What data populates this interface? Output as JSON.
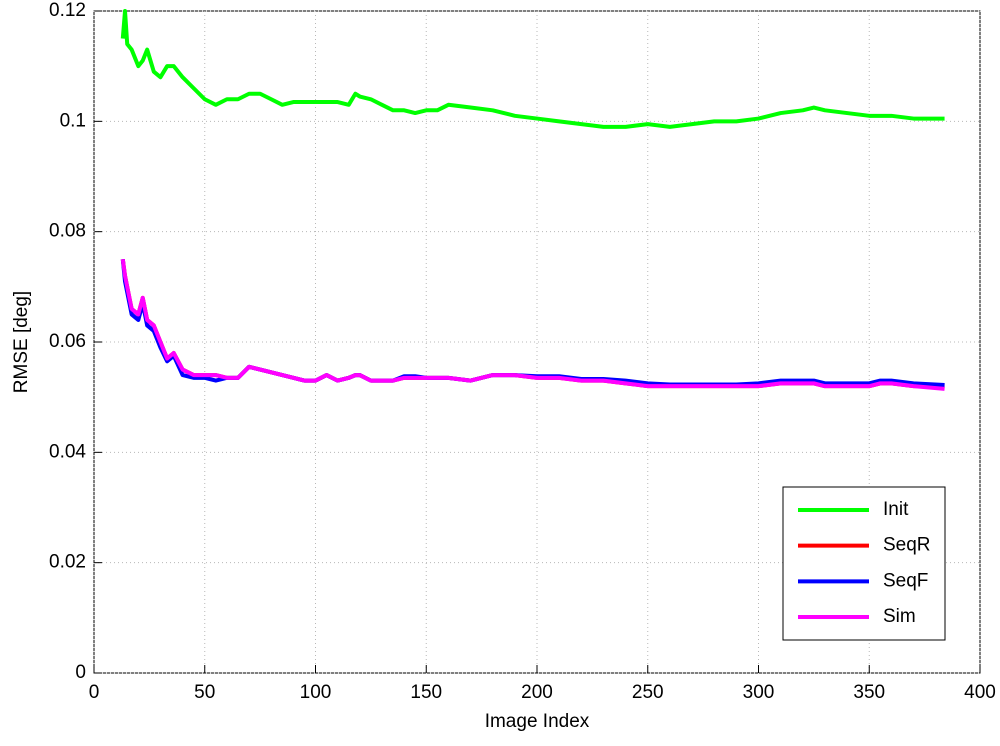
{
  "chart_data": {
    "type": "line",
    "xlabel": "Image Index",
    "ylabel": "RMSE [deg]",
    "x": [
      13,
      14,
      15,
      17,
      20,
      22,
      24,
      27,
      30,
      33,
      36,
      40,
      45,
      50,
      55,
      60,
      65,
      70,
      75,
      80,
      85,
      90,
      95,
      100,
      105,
      110,
      115,
      118,
      120,
      125,
      130,
      135,
      140,
      145,
      150,
      155,
      160,
      170,
      180,
      190,
      200,
      210,
      220,
      230,
      240,
      250,
      260,
      270,
      280,
      290,
      300,
      310,
      320,
      325,
      330,
      340,
      350,
      355,
      360,
      370,
      384
    ],
    "series": [
      {
        "name": "Init",
        "color": "#00ff00",
        "values": [
          0.115,
          0.12,
          0.114,
          0.113,
          0.11,
          0.111,
          0.113,
          0.109,
          0.108,
          0.11,
          0.11,
          0.108,
          0.106,
          0.104,
          0.103,
          0.104,
          0.104,
          0.105,
          0.105,
          0.104,
          0.103,
          0.1035,
          0.1035,
          0.1035,
          0.1035,
          0.1035,
          0.103,
          0.105,
          0.1045,
          0.104,
          0.103,
          0.102,
          0.102,
          0.1015,
          0.102,
          0.102,
          0.103,
          0.1025,
          0.102,
          0.101,
          0.1005,
          0.1,
          0.0995,
          0.099,
          0.099,
          0.0995,
          0.099,
          0.0995,
          0.1,
          0.1,
          0.1005,
          0.1015,
          0.102,
          0.1025,
          0.102,
          0.1015,
          0.101,
          0.101,
          0.101,
          0.1005,
          0.1005
        ]
      },
      {
        "name": "SeqR",
        "color": "#ff0000",
        "values": [
          0.075,
          0.072,
          0.07,
          0.066,
          0.065,
          0.068,
          0.064,
          0.063,
          0.06,
          0.057,
          0.058,
          0.055,
          0.054,
          0.054,
          0.054,
          0.0535,
          0.0535,
          0.0555,
          0.055,
          0.0545,
          0.054,
          0.0535,
          0.053,
          0.053,
          0.054,
          0.053,
          0.0535,
          0.054,
          0.054,
          0.053,
          0.053,
          0.053,
          0.0535,
          0.0535,
          0.0535,
          0.0535,
          0.0535,
          0.053,
          0.054,
          0.054,
          0.0535,
          0.0535,
          0.053,
          0.053,
          0.0525,
          0.052,
          0.052,
          0.052,
          0.052,
          0.052,
          0.052,
          0.0525,
          0.0525,
          0.0525,
          0.052,
          0.052,
          0.052,
          0.0525,
          0.0525,
          0.052,
          0.052
        ]
      },
      {
        "name": "SeqF",
        "color": "#0000ff",
        "values": [
          0.075,
          0.071,
          0.069,
          0.065,
          0.064,
          0.067,
          0.063,
          0.062,
          0.059,
          0.0565,
          0.0575,
          0.054,
          0.0535,
          0.0535,
          0.053,
          0.0535,
          0.0535,
          0.0555,
          0.055,
          0.0545,
          0.054,
          0.0535,
          0.053,
          0.053,
          0.054,
          0.053,
          0.0535,
          0.054,
          0.054,
          0.053,
          0.053,
          0.053,
          0.0538,
          0.0538,
          0.0535,
          0.0535,
          0.0535,
          0.053,
          0.054,
          0.054,
          0.0538,
          0.0538,
          0.0533,
          0.0533,
          0.053,
          0.0525,
          0.0523,
          0.0523,
          0.0523,
          0.0523,
          0.0525,
          0.053,
          0.053,
          0.053,
          0.0525,
          0.0525,
          0.0525,
          0.053,
          0.053,
          0.0525,
          0.0522
        ]
      },
      {
        "name": "Sim",
        "color": "#ff00ff",
        "values": [
          0.075,
          0.072,
          0.07,
          0.066,
          0.065,
          0.068,
          0.064,
          0.063,
          0.06,
          0.057,
          0.058,
          0.055,
          0.054,
          0.054,
          0.054,
          0.0535,
          0.0535,
          0.0555,
          0.055,
          0.0545,
          0.054,
          0.0535,
          0.053,
          0.053,
          0.054,
          0.053,
          0.0535,
          0.054,
          0.054,
          0.053,
          0.053,
          0.053,
          0.0535,
          0.0535,
          0.0535,
          0.0535,
          0.0535,
          0.053,
          0.054,
          0.054,
          0.0535,
          0.0535,
          0.053,
          0.053,
          0.0525,
          0.052,
          0.052,
          0.052,
          0.052,
          0.052,
          0.052,
          0.0525,
          0.0525,
          0.0525,
          0.052,
          0.052,
          0.052,
          0.0525,
          0.0525,
          0.052,
          0.0515
        ]
      }
    ],
    "xlim": [
      0,
      400
    ],
    "xticks": [
      0,
      50,
      100,
      150,
      200,
      250,
      300,
      350,
      400
    ],
    "ylim": [
      0,
      0.12
    ],
    "yticks": [
      0,
      0.02,
      0.04,
      0.06,
      0.08,
      0.1,
      0.12
    ],
    "grid": true,
    "legend": "lower-right"
  }
}
